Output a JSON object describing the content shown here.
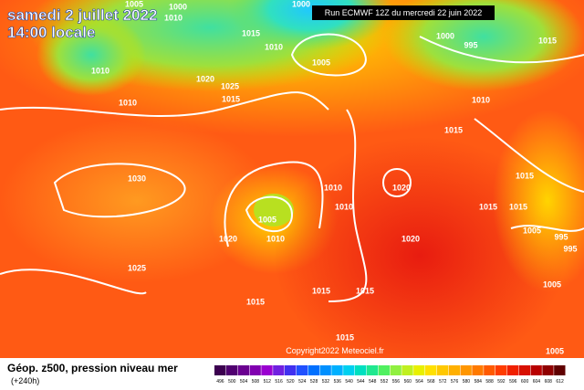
{
  "header": {
    "date": "samedi 2 juillet 2022",
    "time": "14:00 locale",
    "run": "Run ECMWF 12Z du mercredi 22 juin 2022"
  },
  "map": {
    "copyright": "Copyright2022 Meteociel.fr",
    "isobar_labels": [
      "1005",
      "1000",
      "1010",
      "1010",
      "1010",
      "1020",
      "1025",
      "1015",
      "1015",
      "1010",
      "1005",
      "1000",
      "1000",
      "995",
      "1010",
      "1015",
      "1030",
      "1020",
      "1010",
      "1010",
      "1005",
      "1010",
      "1020",
      "1025",
      "1020",
      "1015",
      "1015",
      "1015",
      "1015",
      "1015",
      "1015",
      "1005",
      "995",
      "995",
      "1005",
      "1015",
      "1005",
      "1015"
    ]
  },
  "legend": {
    "title": "Géop. z500, pression niveau mer",
    "lead": "(+240h)",
    "scale": [
      "496",
      "500",
      "504",
      "508",
      "512",
      "516",
      "520",
      "524",
      "528",
      "532",
      "536",
      "540",
      "544",
      "548",
      "552",
      "556",
      "560",
      "564",
      "568",
      "572",
      "576",
      "580",
      "584",
      "588",
      "592",
      "596",
      "600",
      "604",
      "608",
      "612"
    ]
  }
}
